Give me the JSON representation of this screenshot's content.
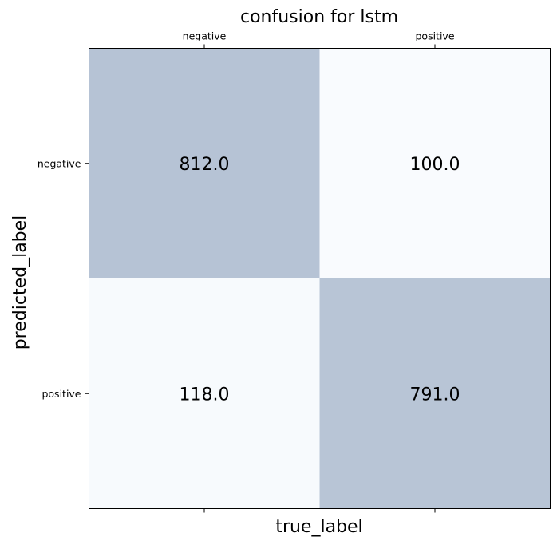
{
  "chart_data": {
    "type": "heatmap",
    "title": "confusion for lstm",
    "xlabel": "true_label",
    "ylabel": "predicted_label",
    "x_categories": [
      "negative",
      "positive"
    ],
    "y_categories": [
      "negative",
      "positive"
    ],
    "x_tick_position": "top",
    "values": [
      [
        812.0,
        100.0
      ],
      [
        118.0,
        791.0
      ]
    ],
    "value_labels": [
      [
        "812.0",
        "100.0"
      ],
      [
        "118.0",
        "791.0"
      ]
    ],
    "colors": {
      "high": "#b6c3d5",
      "low": "#f9fbfe",
      "frame": "#000000"
    },
    "grid": false,
    "colorbar": false
  }
}
